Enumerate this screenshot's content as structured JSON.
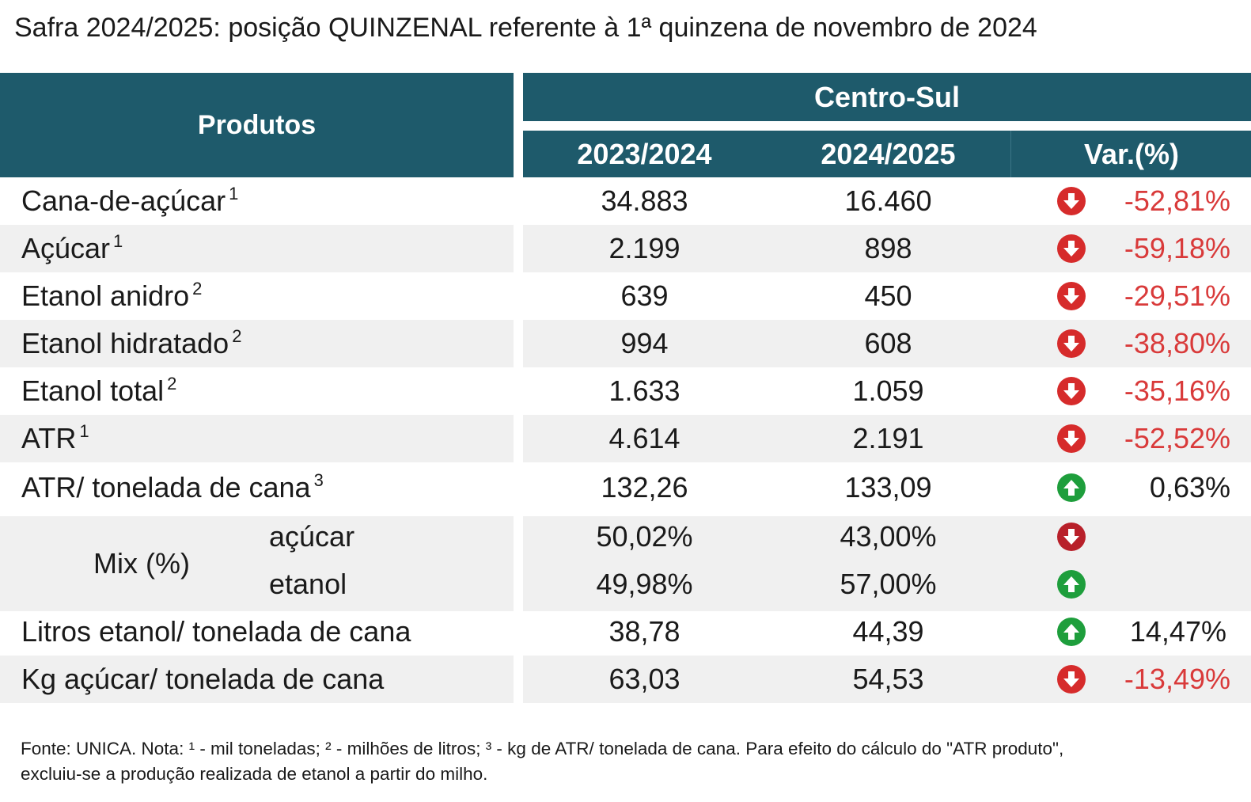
{
  "title": "Safra 2024/2025: posição QUINZENAL referente à 1ª quinzena de novembro de 2024",
  "header": {
    "produtos": "Produtos",
    "region": "Centro-Sul",
    "col1": "2023/2024",
    "col2": "2024/2025",
    "col3": "Var.(%)"
  },
  "colors": {
    "header_bg": "#1e5a6b",
    "negative": "#d93a3a",
    "arrow_down": "#d62b2b",
    "arrow_up": "#1e9e3c",
    "row_shade": "#f0f0f0"
  },
  "rows": [
    {
      "label": "Cana-de-açúcar",
      "sup": "1",
      "v1": "34.883",
      "v2": "16.460",
      "var": "-52,81%",
      "icon": "arrow-down-icon"
    },
    {
      "label": "Açúcar",
      "sup": "1",
      "v1": "2.199",
      "v2": "898",
      "var": "-59,18%",
      "icon": "arrow-down-icon"
    },
    {
      "label": "Etanol anidro",
      "sup": "2",
      "v1": "639",
      "v2": "450",
      "var": "-29,51%",
      "icon": "arrow-down-icon"
    },
    {
      "label": "Etanol hidratado",
      "sup": "2",
      "v1": "994",
      "v2": "608",
      "var": "-38,80%",
      "icon": "arrow-down-icon"
    },
    {
      "label": "Etanol total",
      "sup": "2",
      "v1": "1.633",
      "v2": "1.059",
      "var": "-35,16%",
      "icon": "arrow-down-icon"
    },
    {
      "label": "ATR",
      "sup": "1",
      "v1": "4.614",
      "v2": "2.191",
      "var": "-52,52%",
      "icon": "arrow-down-icon"
    },
    {
      "label": "ATR/ tonelada de cana",
      "sup": "3",
      "v1": "132,26",
      "v2": "133,09",
      "var": "0,63%",
      "icon": "arrow-up-icon"
    }
  ],
  "mix": {
    "label": "Mix (%)",
    "acucar": {
      "label": "açúcar",
      "v1": "50,02%",
      "v2": "43,00%",
      "icon": "arrow-down-icon"
    },
    "etanol": {
      "label": "etanol",
      "v1": "49,98%",
      "v2": "57,00%",
      "icon": "arrow-up-icon"
    }
  },
  "rows2": [
    {
      "label": "Litros etanol/ tonelada de cana",
      "v1": "38,78",
      "v2": "44,39",
      "var": "14,47%",
      "icon": "arrow-up-icon"
    },
    {
      "label": "Kg açúcar/ tonelada de cana",
      "v1": "63,03",
      "v2": "54,53",
      "var": "-13,49%",
      "icon": "arrow-down-icon"
    }
  ],
  "footnote": {
    "line1": "Fonte: UNICA. Nota: ¹ - mil toneladas; ² - milhões de litros; ³ - kg de ATR/ tonelada de cana. Para efeito do cálculo do \"ATR produto\",",
    "line2": "excluiu-se a produção realizada de etanol a partir do milho."
  }
}
